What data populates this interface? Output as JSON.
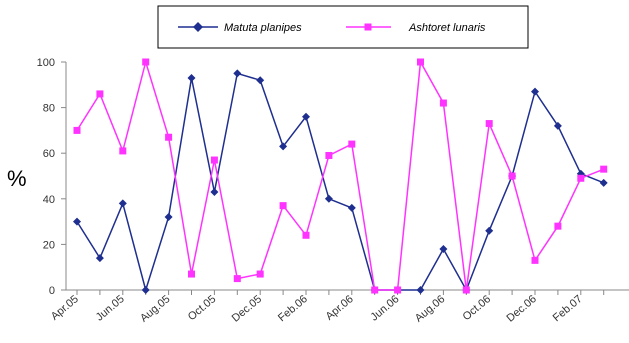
{
  "chart_data": {
    "type": "line",
    "title": "",
    "xlabel": "",
    "ylabel": "%",
    "ylim": [
      0,
      100
    ],
    "yticks": [
      0,
      20,
      40,
      60,
      80,
      100
    ],
    "x": [
      "Apr.05",
      "May.05",
      "Jun.05",
      "Jul.05",
      "Aug.05",
      "Sep.05",
      "Oct.05",
      "Nov.05",
      "Dec.05",
      "Jan.06",
      "Feb.06",
      "Mar.06",
      "Apr.06",
      "May.06",
      "Jun.06",
      "Jul.06",
      "Aug.06",
      "Sep.06",
      "Oct.06",
      "Nov.06",
      "Dec.06",
      "Jan.07",
      "Feb.07",
      "Mar.07"
    ],
    "x_tick_labels": [
      "Apr.05",
      "",
      "Jun.05",
      "",
      "Aug.05",
      "",
      "Oct.05",
      "",
      "Dec.05",
      "",
      "Feb.06",
      "",
      "Apr.06",
      "",
      "Jun.06",
      "",
      "Aug.06",
      "",
      "Oct.06",
      "",
      "Dec.06",
      "",
      "Feb.07",
      ""
    ],
    "grid": false,
    "legend_position": "top",
    "series": [
      {
        "name": "Matuta planipes",
        "color": "#1f2f8f",
        "marker": "diamond",
        "values": [
          30,
          14,
          38,
          0,
          32,
          93,
          43,
          95,
          92,
          63,
          76,
          40,
          36,
          0,
          0,
          0,
          18,
          0,
          26,
          50,
          87,
          72,
          51,
          47
        ]
      },
      {
        "name": "Ashtoret lunaris",
        "color": "#ff33ff",
        "marker": "square",
        "values": [
          70,
          86,
          61,
          100,
          67,
          7,
          57,
          5,
          7,
          37,
          24,
          59,
          64,
          0,
          0,
          100,
          82,
          0,
          73,
          50,
          13,
          28,
          49,
          53
        ]
      }
    ]
  }
}
